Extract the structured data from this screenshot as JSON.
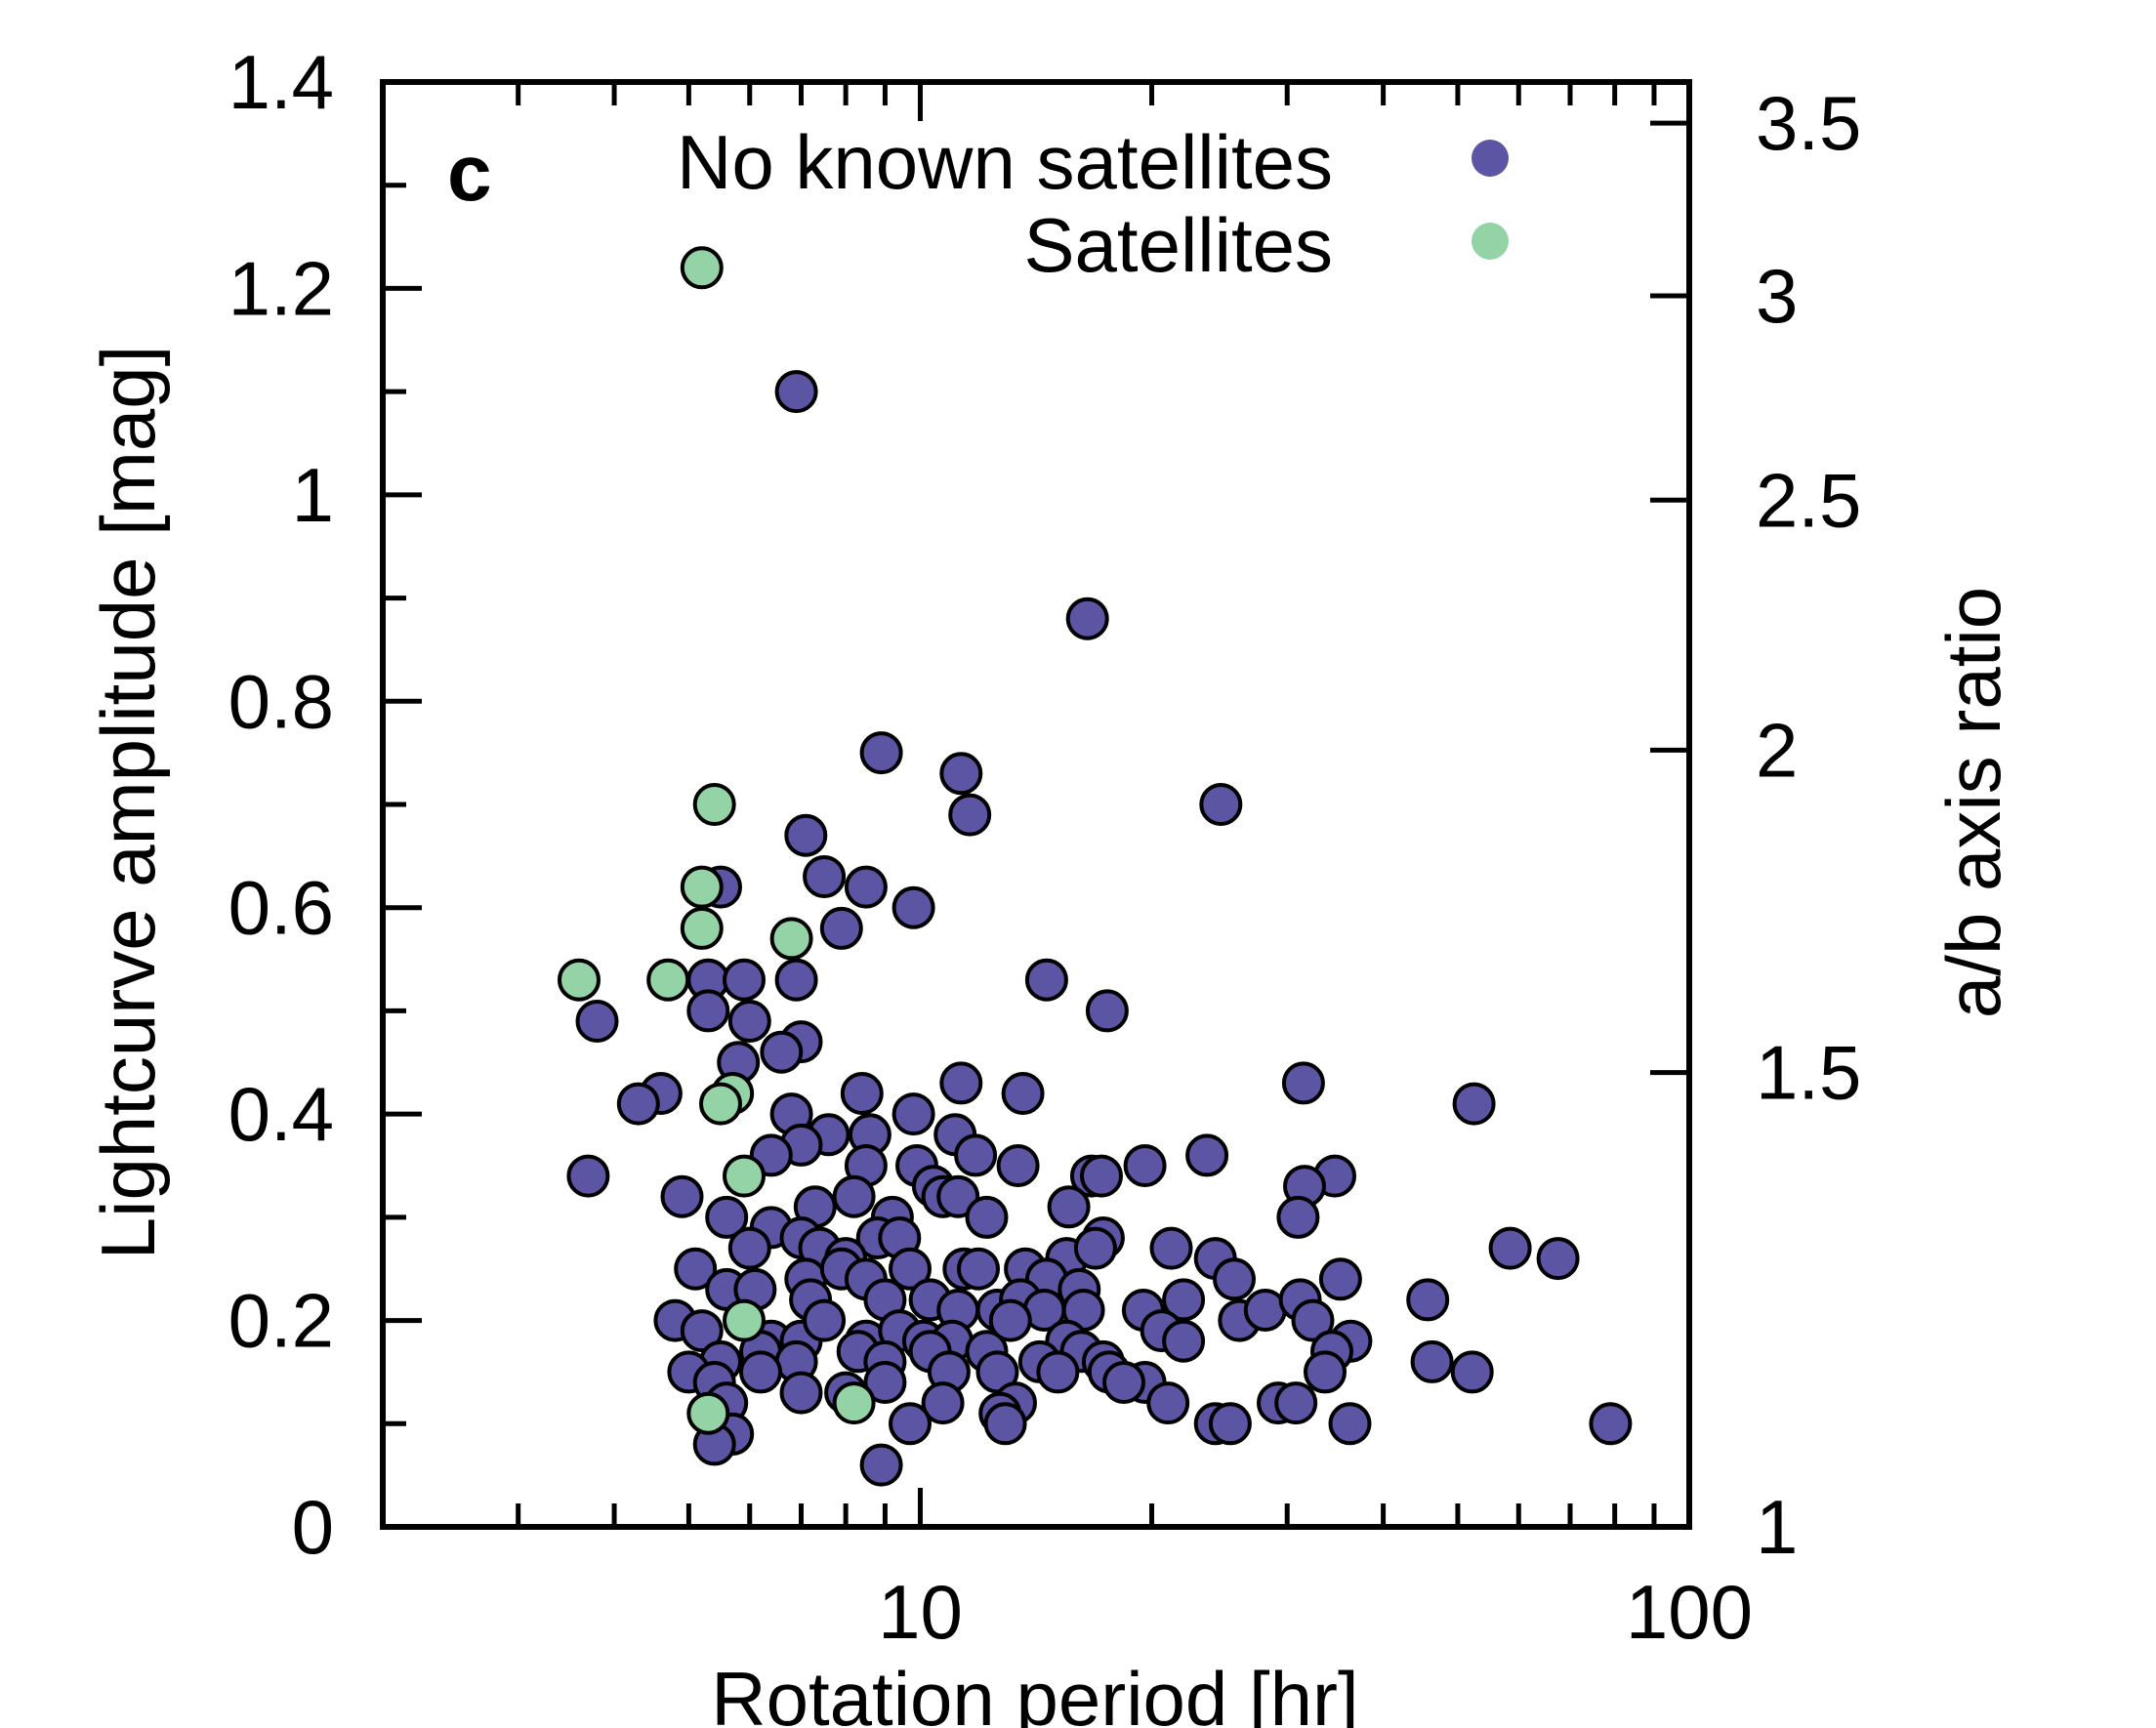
{
  "chart_data": {
    "type": "scatter",
    "panel_label": "c",
    "xlabel": "Rotation period [hr]",
    "ylabel": "Lightcurve amplitude [mag]",
    "y2label": "a/b axis ratio",
    "xscale": "log",
    "xlim": [
      2,
      100
    ],
    "ylim": [
      0,
      1.4
    ],
    "x_tick_labels": [
      {
        "value": 10,
        "label": "10"
      },
      {
        "value": 100,
        "label": "100"
      }
    ],
    "y_tick_labels": [
      {
        "value": 0,
        "label": "0"
      },
      {
        "value": 0.2,
        "label": "0.2"
      },
      {
        "value": 0.4,
        "label": "0.4"
      },
      {
        "value": 0.6,
        "label": "0.6"
      },
      {
        "value": 0.8,
        "label": "0.8"
      },
      {
        "value": 1.0,
        "label": "1"
      },
      {
        "value": 1.2,
        "label": "1.2"
      },
      {
        "value": 1.4,
        "label": "1.4"
      }
    ],
    "y2_tick_labels": [
      {
        "value": 1,
        "label": "1"
      },
      {
        "value": 1.5,
        "label": "1.5"
      },
      {
        "value": 2,
        "label": "2"
      },
      {
        "value": 2.5,
        "label": "2.5"
      },
      {
        "value": 3,
        "label": "3"
      },
      {
        "value": 3.5,
        "label": "3.5"
      }
    ],
    "legend_position": "top-right",
    "series": [
      {
        "name": "No known satellites",
        "color": "#5b55a3",
        "points": [
          [
            6.9,
            1.1
          ],
          [
            16.5,
            0.88
          ],
          [
            8.9,
            0.75
          ],
          [
            11.3,
            0.73
          ],
          [
            11.6,
            0.69
          ],
          [
            24.6,
            0.7
          ],
          [
            7.1,
            0.67
          ],
          [
            7.5,
            0.63
          ],
          [
            8.5,
            0.62
          ],
          [
            5.5,
            0.62
          ],
          [
            9.8,
            0.6
          ],
          [
            7.9,
            0.58
          ],
          [
            14.6,
            0.53
          ],
          [
            17.5,
            0.5
          ],
          [
            5.3,
            0.53
          ],
          [
            5.9,
            0.53
          ],
          [
            6.9,
            0.53
          ],
          [
            5.3,
            0.5
          ],
          [
            3.8,
            0.49
          ],
          [
            6.0,
            0.49
          ],
          [
            7.0,
            0.47
          ],
          [
            6.6,
            0.46
          ],
          [
            5.8,
            0.45
          ],
          [
            4.6,
            0.42
          ],
          [
            4.3,
            0.41
          ],
          [
            11.3,
            0.43
          ],
          [
            13.6,
            0.42
          ],
          [
            8.4,
            0.42
          ],
          [
            31.5,
            0.43
          ],
          [
            52.5,
            0.41
          ],
          [
            9.8,
            0.4
          ],
          [
            6.8,
            0.4
          ],
          [
            7.6,
            0.38
          ],
          [
            8.6,
            0.38
          ],
          [
            11.1,
            0.38
          ],
          [
            7.0,
            0.37
          ],
          [
            6.4,
            0.36
          ],
          [
            8.5,
            0.35
          ],
          [
            9.9,
            0.35
          ],
          [
            11.8,
            0.36
          ],
          [
            13.4,
            0.35
          ],
          [
            16.7,
            0.34
          ],
          [
            17.2,
            0.34
          ],
          [
            19.6,
            0.35
          ],
          [
            23.6,
            0.36
          ],
          [
            34.6,
            0.34
          ],
          [
            3.7,
            0.34
          ],
          [
            10.4,
            0.33
          ],
          [
            31.6,
            0.33
          ],
          [
            4.9,
            0.32
          ],
          [
            7.3,
            0.31
          ],
          [
            8.2,
            0.32
          ],
          [
            9.2,
            0.3
          ],
          [
            10.7,
            0.32
          ],
          [
            11.2,
            0.32
          ],
          [
            12.2,
            0.3
          ],
          [
            15.6,
            0.31
          ],
          [
            5.6,
            0.3
          ],
          [
            6.4,
            0.29
          ],
          [
            7.0,
            0.28
          ],
          [
            8.8,
            0.28
          ],
          [
            9.4,
            0.28
          ],
          [
            17.3,
            0.28
          ],
          [
            31.0,
            0.3
          ],
          [
            58.5,
            0.27
          ],
          [
            67.5,
            0.26
          ],
          [
            6.0,
            0.27
          ],
          [
            7.4,
            0.27
          ],
          [
            8.0,
            0.26
          ],
          [
            15.5,
            0.26
          ],
          [
            16.9,
            0.27
          ],
          [
            21.2,
            0.27
          ],
          [
            24.2,
            0.26
          ],
          [
            25.6,
            0.24
          ],
          [
            5.1,
            0.25
          ],
          [
            7.1,
            0.24
          ],
          [
            7.9,
            0.25
          ],
          [
            8.5,
            0.24
          ],
          [
            9.7,
            0.25
          ],
          [
            11.4,
            0.25
          ],
          [
            11.9,
            0.25
          ],
          [
            13.7,
            0.25
          ],
          [
            14.6,
            0.24
          ],
          [
            16.1,
            0.23
          ],
          [
            35.2,
            0.24
          ],
          [
            5.6,
            0.23
          ],
          [
            6.1,
            0.23
          ],
          [
            7.2,
            0.22
          ],
          [
            9.0,
            0.22
          ],
          [
            10.3,
            0.22
          ],
          [
            11.2,
            0.21
          ],
          [
            12.6,
            0.21
          ],
          [
            13.5,
            0.22
          ],
          [
            14.5,
            0.21
          ],
          [
            16.3,
            0.21
          ],
          [
            19.5,
            0.21
          ],
          [
            22.0,
            0.22
          ],
          [
            26.0,
            0.2
          ],
          [
            28.1,
            0.21
          ],
          [
            31.2,
            0.22
          ],
          [
            32.4,
            0.2
          ],
          [
            45.7,
            0.22
          ],
          [
            4.8,
            0.2
          ],
          [
            5.2,
            0.19
          ],
          [
            6.4,
            0.18
          ],
          [
            7.0,
            0.18
          ],
          [
            7.5,
            0.2
          ],
          [
            8.5,
            0.18
          ],
          [
            9.4,
            0.19
          ],
          [
            10.1,
            0.18
          ],
          [
            11.0,
            0.18
          ],
          [
            12.2,
            0.17
          ],
          [
            13.1,
            0.2
          ],
          [
            15.5,
            0.18
          ],
          [
            16.2,
            0.17
          ],
          [
            17.3,
            0.16
          ],
          [
            20.6,
            0.19
          ],
          [
            22.0,
            0.18
          ],
          [
            36.3,
            0.18
          ],
          [
            5.5,
            0.16
          ],
          [
            6.2,
            0.17
          ],
          [
            6.9,
            0.16
          ],
          [
            8.3,
            0.17
          ],
          [
            9.0,
            0.16
          ],
          [
            10.3,
            0.17
          ],
          [
            10.9,
            0.15
          ],
          [
            12.6,
            0.15
          ],
          [
            14.3,
            0.16
          ],
          [
            15.1,
            0.15
          ],
          [
            17.6,
            0.15
          ],
          [
            19.6,
            0.14
          ],
          [
            34.3,
            0.17
          ],
          [
            46.3,
            0.16
          ],
          [
            52.2,
            0.15
          ],
          [
            5.0,
            0.15
          ],
          [
            5.4,
            0.14
          ],
          [
            6.2,
            0.15
          ],
          [
            7.0,
            0.13
          ],
          [
            8.0,
            0.13
          ],
          [
            9.0,
            0.14
          ],
          [
            10.7,
            0.12
          ],
          [
            13.3,
            0.12
          ],
          [
            18.4,
            0.14
          ],
          [
            21.0,
            0.12
          ],
          [
            29.2,
            0.12
          ],
          [
            30.8,
            0.12
          ],
          [
            33.6,
            0.15
          ],
          [
            5.6,
            0.12
          ],
          [
            12.7,
            0.11
          ],
          [
            12.9,
            0.1
          ],
          [
            24.2,
            0.1
          ],
          [
            25.3,
            0.1
          ],
          [
            36.2,
            0.1
          ],
          [
            79.0,
            0.1
          ],
          [
            5.7,
            0.09
          ],
          [
            5.4,
            0.08
          ],
          [
            9.7,
            0.1
          ],
          [
            8.9,
            0.06
          ]
        ]
      },
      {
        "name": "Satellites",
        "color": "#93d3a6",
        "points": [
          [
            5.2,
            1.22
          ],
          [
            5.4,
            0.7
          ],
          [
            3.6,
            0.53
          ],
          [
            4.7,
            0.53
          ],
          [
            5.2,
            0.62
          ],
          [
            5.2,
            0.58
          ],
          [
            6.8,
            0.57
          ],
          [
            5.7,
            0.42
          ],
          [
            5.5,
            0.41
          ],
          [
            5.9,
            0.34
          ],
          [
            5.9,
            0.2
          ],
          [
            5.3,
            0.11
          ],
          [
            8.2,
            0.12
          ]
        ]
      }
    ]
  }
}
